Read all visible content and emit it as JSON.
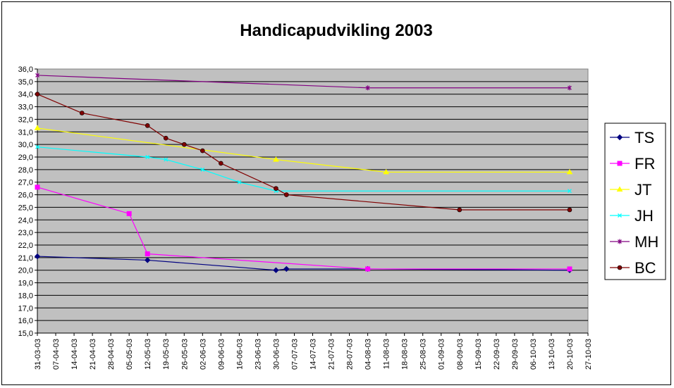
{
  "chart_data": {
    "type": "line",
    "title": "Handicapudvikling 2003",
    "xlabel": "",
    "ylabel": "",
    "ylim": [
      15.0,
      36.0
    ],
    "y_ticks": [
      "15,0",
      "16,0",
      "17,0",
      "18,0",
      "19,0",
      "20,0",
      "21,0",
      "22,0",
      "23,0",
      "24,0",
      "25,0",
      "26,0",
      "27,0",
      "28,0",
      "29,0",
      "30,0",
      "31,0",
      "32,0",
      "33,0",
      "34,0",
      "35,0",
      "36,0"
    ],
    "x_ticks": [
      "31-03-03",
      "07-04-03",
      "14-04-03",
      "21-04-03",
      "28-04-03",
      "05-05-03",
      "12-05-03",
      "19-05-03",
      "26-05-03",
      "02-06-03",
      "09-06-03",
      "16-06-03",
      "23-06-03",
      "30-06-03",
      "07-07-03",
      "14-07-03",
      "21-07-03",
      "28-07-03",
      "04-08-03",
      "11-08-03",
      "18-08-03",
      "25-08-03",
      "01-09-03",
      "08-09-03",
      "15-09-03",
      "22-09-03",
      "29-09-03",
      "06-10-03",
      "13-10-03",
      "20-10-03",
      "27-10-03"
    ],
    "x_range": [
      "2003-03-31",
      "2003-10-27"
    ],
    "grid": true,
    "legend_position": "right",
    "series": [
      {
        "name": "TS",
        "color": "#000080",
        "marker": "diamond",
        "points": [
          [
            "2003-03-31",
            21.1
          ],
          [
            "2003-05-12",
            20.8
          ],
          [
            "2003-06-30",
            20.0
          ],
          [
            "2003-07-04",
            20.1
          ],
          [
            "2003-08-04",
            20.1
          ],
          [
            "2003-10-20",
            20.0
          ]
        ]
      },
      {
        "name": "FR",
        "color": "#ff00ff",
        "marker": "square",
        "points": [
          [
            "2003-03-31",
            26.6
          ],
          [
            "2003-05-05",
            24.5
          ],
          [
            "2003-05-12",
            21.3
          ],
          [
            "2003-08-04",
            20.1
          ],
          [
            "2003-10-20",
            20.1
          ]
        ]
      },
      {
        "name": "JT",
        "color": "#ffff00",
        "marker": "triangle",
        "points": [
          [
            "2003-03-31",
            31.3
          ],
          [
            "2003-06-30",
            28.8
          ],
          [
            "2003-08-11",
            27.8
          ],
          [
            "2003-10-20",
            27.8
          ]
        ]
      },
      {
        "name": "JH",
        "color": "#00ffff",
        "marker": "x",
        "points": [
          [
            "2003-03-31",
            29.8
          ],
          [
            "2003-05-12",
            29.0
          ],
          [
            "2003-05-19",
            28.8
          ],
          [
            "2003-06-02",
            28.0
          ],
          [
            "2003-06-16",
            27.0
          ],
          [
            "2003-06-30",
            26.3
          ],
          [
            "2003-10-20",
            26.3
          ]
        ]
      },
      {
        "name": "MH",
        "color": "#800080",
        "marker": "star",
        "points": [
          [
            "2003-03-31",
            35.5
          ],
          [
            "2003-08-04",
            34.5
          ],
          [
            "2003-10-20",
            34.5
          ]
        ]
      },
      {
        "name": "BC",
        "color": "#800000",
        "marker": "circle",
        "points": [
          [
            "2003-03-31",
            34.0
          ],
          [
            "2003-04-17",
            32.5
          ],
          [
            "2003-05-12",
            31.5
          ],
          [
            "2003-05-19",
            30.5
          ],
          [
            "2003-05-26",
            30.0
          ],
          [
            "2003-06-02",
            29.5
          ],
          [
            "2003-06-09",
            28.5
          ],
          [
            "2003-06-30",
            26.5
          ],
          [
            "2003-07-04",
            26.0
          ],
          [
            "2003-09-08",
            24.8
          ],
          [
            "2003-10-20",
            24.8
          ]
        ]
      }
    ]
  }
}
